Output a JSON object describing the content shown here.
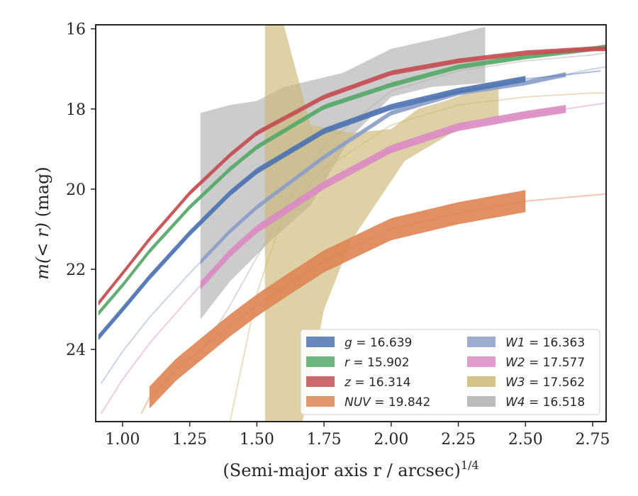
{
  "chart_data": {
    "type": "area",
    "xlabel": "(Semi-major axis r / arcsec)",
    "xlabel_exponent": "1/4",
    "ylabel_main": "m(< r)",
    "ylabel_unit": " (mag)",
    "xlim": [
      0.9,
      2.8
    ],
    "ylim": [
      25.8,
      15.9
    ],
    "y_inverted": true,
    "grid": false,
    "legend_position": "lower-right",
    "xticks": [
      "1.00",
      "1.25",
      "1.50",
      "1.75",
      "2.00",
      "2.25",
      "2.50",
      "2.75"
    ],
    "yticks": [
      "16",
      "18",
      "20",
      "22",
      "24"
    ],
    "series": [
      {
        "name": "g",
        "legend": "g = 16.639",
        "color": "#4c72b0",
        "kind": "band",
        "extension_end_x": 2.78,
        "points": [
          [
            0.91,
            23.7
          ],
          [
            1.0,
            23.0
          ],
          [
            1.1,
            22.2
          ],
          [
            1.25,
            21.1
          ],
          [
            1.4,
            20.1
          ],
          [
            1.5,
            19.55
          ],
          [
            1.75,
            18.55
          ],
          [
            2.0,
            17.95
          ],
          [
            2.25,
            17.55
          ],
          [
            2.5,
            17.25
          ],
          [
            2.65,
            17.15
          ],
          [
            2.78,
            17.05
          ]
        ],
        "band_end_x": 2.5,
        "band_width": 0.15
      },
      {
        "name": "r",
        "legend": "r = 15.902",
        "color": "#55a868",
        "kind": "band",
        "extension_end_x": 2.8,
        "points": [
          [
            0.91,
            23.1
          ],
          [
            1.0,
            22.4
          ],
          [
            1.1,
            21.55
          ],
          [
            1.25,
            20.45
          ],
          [
            1.4,
            19.5
          ],
          [
            1.5,
            18.95
          ],
          [
            1.75,
            17.95
          ],
          [
            2.0,
            17.4
          ],
          [
            2.25,
            16.95
          ],
          [
            2.5,
            16.7
          ],
          [
            2.75,
            16.5
          ],
          [
            2.8,
            16.45
          ]
        ],
        "band_end_x": 2.8,
        "band_width": 0.12
      },
      {
        "name": "z",
        "legend": "z = 16.314",
        "color": "#c44e52",
        "kind": "band",
        "extension_end_x": 2.8,
        "points": [
          [
            0.91,
            22.85
          ],
          [
            1.0,
            22.1
          ],
          [
            1.1,
            21.25
          ],
          [
            1.25,
            20.1
          ],
          [
            1.4,
            19.15
          ],
          [
            1.5,
            18.6
          ],
          [
            1.75,
            17.7
          ],
          [
            2.0,
            17.1
          ],
          [
            2.25,
            16.8
          ],
          [
            2.5,
            16.6
          ],
          [
            2.75,
            16.5
          ],
          [
            2.8,
            16.5
          ]
        ],
        "band_end_x": 2.8,
        "band_width": 0.12
      },
      {
        "name": "NUV",
        "legend": "NUV = 19.842",
        "color": "#dd8452",
        "kind": "band",
        "extension_start_x": 1.07,
        "extension_end_x": 2.8,
        "points": [
          [
            1.07,
            25.6
          ],
          [
            1.1,
            25.2
          ],
          [
            1.2,
            24.5
          ],
          [
            1.3,
            23.95
          ],
          [
            1.4,
            23.4
          ],
          [
            1.5,
            22.9
          ],
          [
            1.6,
            22.45
          ],
          [
            1.75,
            21.8
          ],
          [
            2.0,
            21.0
          ],
          [
            2.25,
            20.6
          ],
          [
            2.5,
            20.3
          ],
          [
            2.75,
            20.15
          ],
          [
            2.8,
            20.12
          ]
        ],
        "band_start_x": 1.1,
        "band_end_x": 2.5,
        "band_width": 0.55
      },
      {
        "name": "W1",
        "legend": "W1 = 16.363",
        "color": "#8c9fc7",
        "kind": "band",
        "extension_start_x": 0.92,
        "extension_end_x": 2.8,
        "points": [
          [
            0.92,
            24.85
          ],
          [
            1.0,
            24.05
          ],
          [
            1.1,
            23.2
          ],
          [
            1.25,
            22.1
          ],
          [
            1.4,
            21.05
          ],
          [
            1.5,
            20.45
          ],
          [
            1.75,
            19.2
          ],
          [
            2.0,
            18.1
          ],
          [
            2.25,
            17.6
          ],
          [
            2.5,
            17.35
          ],
          [
            2.75,
            17.0
          ],
          [
            2.8,
            16.95
          ]
        ],
        "band_start_x": 1.29,
        "band_end_x": 2.65,
        "band_width": 0.12
      },
      {
        "name": "W2",
        "legend": "W2 = 17.577",
        "color": "#da8bc3",
        "kind": "band",
        "extension_start_x": 0.92,
        "extension_end_x": 2.8,
        "points": [
          [
            0.92,
            25.6
          ],
          [
            1.0,
            24.75
          ],
          [
            1.1,
            23.85
          ],
          [
            1.25,
            22.7
          ],
          [
            1.4,
            21.6
          ],
          [
            1.5,
            21.0
          ],
          [
            1.75,
            19.9
          ],
          [
            2.0,
            19.0
          ],
          [
            2.25,
            18.45
          ],
          [
            2.5,
            18.15
          ],
          [
            2.75,
            17.9
          ],
          [
            2.8,
            17.85
          ]
        ],
        "band_start_x": 1.29,
        "band_end_x": 2.65,
        "band_width": 0.2
      },
      {
        "name": "W3",
        "legend": "W3 = 17.562",
        "color": "#ccb974",
        "kind": "envelope",
        "extension_start_x": 1.4,
        "extension_end_x": 2.8,
        "points": [
          [
            1.4,
            25.8
          ],
          [
            1.5,
            22.6
          ],
          [
            1.6,
            20.6
          ],
          [
            1.75,
            19.5
          ],
          [
            2.0,
            18.4
          ],
          [
            2.25,
            17.9
          ],
          [
            2.5,
            17.7
          ],
          [
            2.75,
            17.6
          ],
          [
            2.8,
            17.6
          ]
        ],
        "upper": [
          [
            1.53,
            15.9
          ],
          [
            1.6,
            15.9
          ],
          [
            1.7,
            18.4
          ],
          [
            1.85,
            18.6
          ],
          [
            2.0,
            18.5
          ],
          [
            2.1,
            18.0
          ],
          [
            2.2,
            17.8
          ],
          [
            2.35,
            17.45
          ],
          [
            2.4,
            17.4
          ]
        ],
        "lower": [
          [
            1.53,
            25.8
          ],
          [
            1.67,
            25.8
          ],
          [
            1.75,
            23.0
          ],
          [
            1.85,
            21.3
          ],
          [
            1.95,
            20.3
          ],
          [
            2.05,
            19.3
          ],
          [
            2.2,
            18.7
          ],
          [
            2.3,
            18.3
          ],
          [
            2.4,
            18.2
          ]
        ]
      },
      {
        "name": "W4",
        "legend": "W4 = 16.518",
        "color": "#b0b0b0",
        "kind": "envelope",
        "extension_start_x": 1.29,
        "extension_end_x": 2.8,
        "points": [
          [
            1.29,
            24.1
          ],
          [
            1.4,
            22.9
          ],
          [
            1.5,
            21.7
          ],
          [
            1.6,
            20.5
          ],
          [
            1.75,
            18.9
          ],
          [
            2.0,
            17.55
          ],
          [
            2.25,
            17.05
          ],
          [
            2.5,
            16.8
          ],
          [
            2.75,
            16.65
          ],
          [
            2.8,
            16.6
          ]
        ],
        "upper": [
          [
            1.29,
            18.1
          ],
          [
            1.4,
            17.9
          ],
          [
            1.5,
            17.8
          ],
          [
            1.6,
            17.45
          ],
          [
            1.82,
            17.1
          ],
          [
            2.0,
            16.5
          ],
          [
            2.2,
            16.2
          ],
          [
            2.35,
            15.95
          ]
        ],
        "lower": [
          [
            1.29,
            23.25
          ],
          [
            1.4,
            22.3
          ],
          [
            1.55,
            21.3
          ],
          [
            1.7,
            20.4
          ],
          [
            1.85,
            18.7
          ],
          [
            2.0,
            17.7
          ],
          [
            2.15,
            17.45
          ],
          [
            2.35,
            17.35
          ]
        ]
      }
    ]
  }
}
